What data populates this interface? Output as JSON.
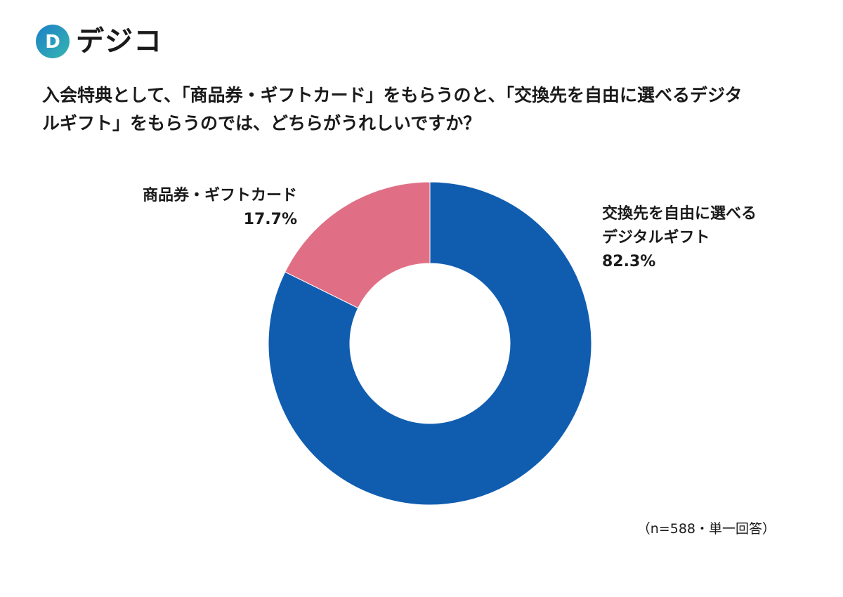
{
  "brand": {
    "logo_letter": "D",
    "name": "デジコ",
    "colors": {
      "mark_start": "#1e7fc8",
      "mark_end": "#35b6b0"
    }
  },
  "question": {
    "line1": "入会特典として、「商品券・ギフトカード」をもらうのと、「交換先を自由に選べるデジタ",
    "line2": "ルギフト」をもらうのでは、どちらがうれしいですか？"
  },
  "chart_data": {
    "type": "pie",
    "donut": true,
    "start": "top",
    "direction": "clockwise",
    "slices": [
      {
        "label_lines": [
          "交換先を自由に選べる",
          "デジタルギフト"
        ],
        "value_label": "82.3%",
        "value": 82.3,
        "color": "#105db0"
      },
      {
        "label_lines": [
          "商品券・ギフトカード"
        ],
        "value_label": "17.7%",
        "value": 17.7,
        "color": "#e06f85"
      }
    ],
    "note": "（n=588・単一回答）"
  }
}
